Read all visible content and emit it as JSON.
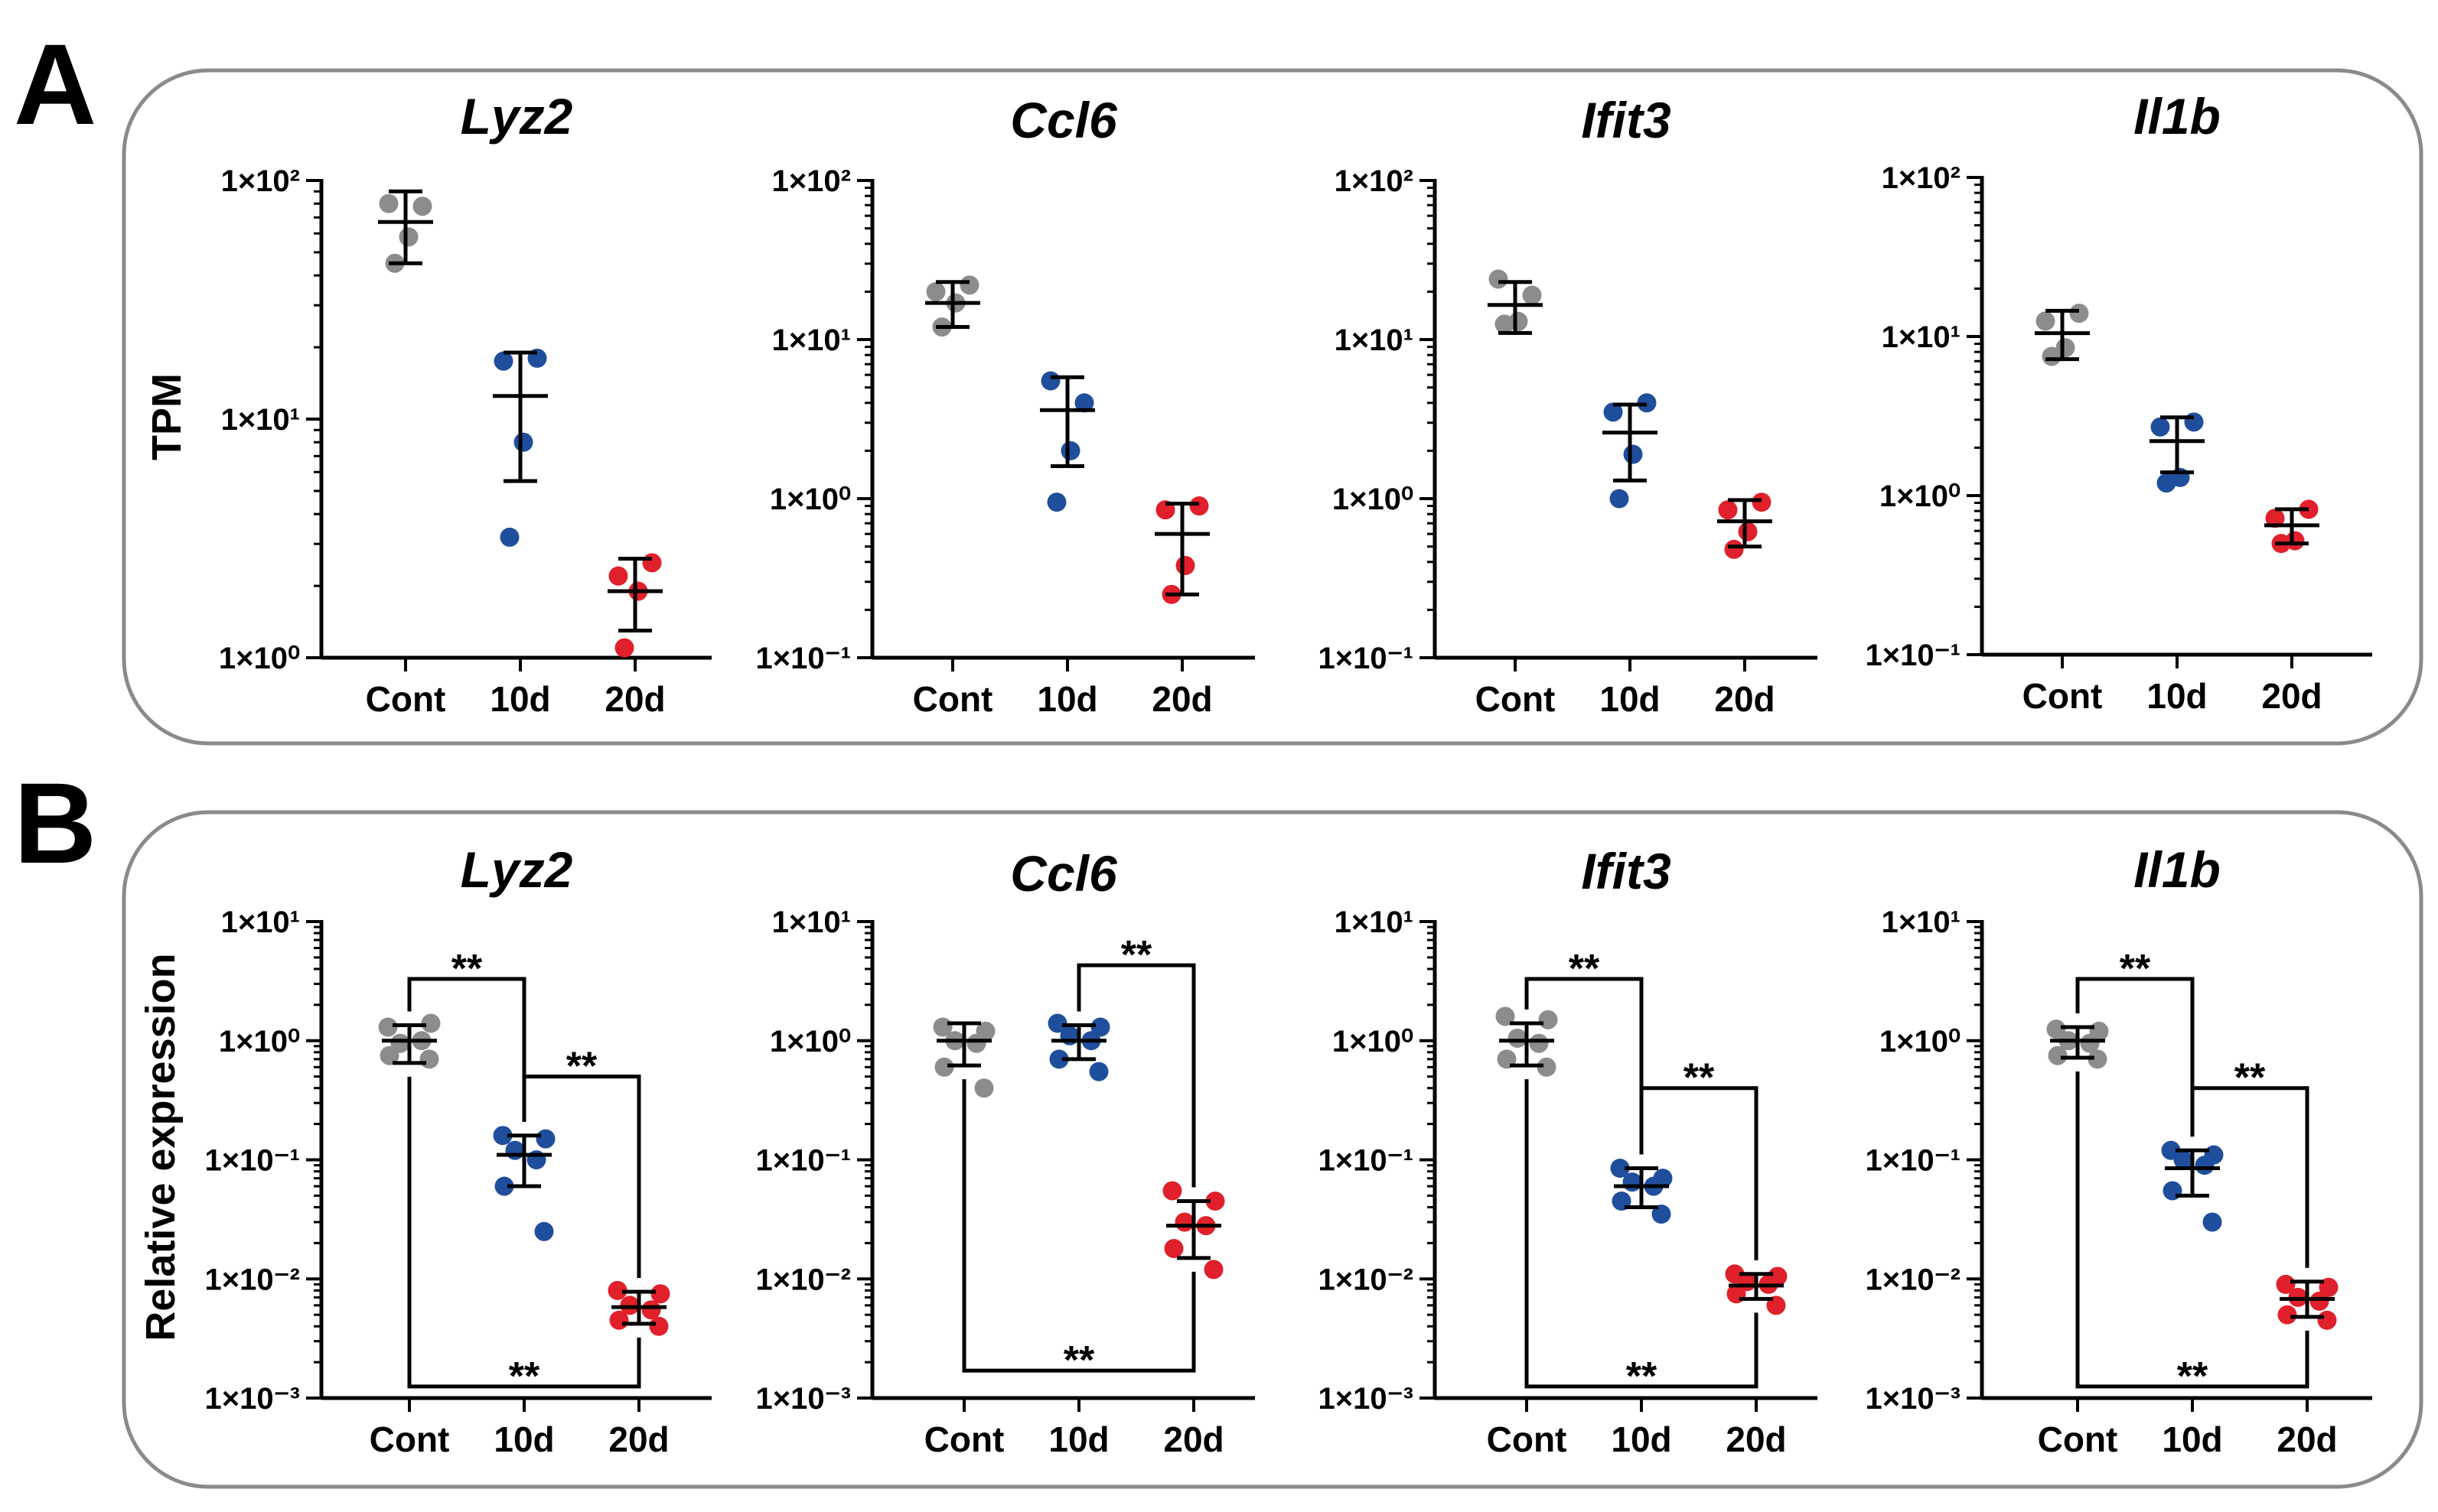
{
  "figure": {
    "panels": [
      {
        "letter": "A",
        "ylabel": "TPM",
        "categories": [
          "Cont",
          "10d",
          "20d"
        ]
      },
      {
        "letter": "B",
        "ylabel": "Relative expression",
        "categories": [
          "Cont",
          "10d",
          "20d"
        ]
      }
    ]
  },
  "colors": {
    "Cont": "#8c8c8c",
    "10d": "#1f4e9c",
    "20d": "#e0202a",
    "frame": "#8a8a8a",
    "ink": "#000000"
  },
  "chart_data": [
    {
      "panel": "A",
      "type": "scatter",
      "title": "Lyz2",
      "xlabel": "",
      "ylabel": "TPM",
      "yscale": "log",
      "ylim": [
        1,
        100
      ],
      "yticks": [
        {
          "value": 1,
          "label": "1×10⁰"
        },
        {
          "value": 10,
          "label": "1×10¹"
        },
        {
          "value": 100,
          "label": "1×10²"
        }
      ],
      "categories": [
        "Cont",
        "10d",
        "20d"
      ],
      "series": [
        {
          "name": "Cont",
          "points": [
            80,
            78,
            58,
            45
          ],
          "mean": 67,
          "err": [
            45,
            90
          ]
        },
        {
          "name": "10d",
          "points": [
            17.5,
            18,
            8,
            3.2
          ],
          "mean": 12.5,
          "err": [
            5.5,
            19
          ]
        },
        {
          "name": "20d",
          "points": [
            2.2,
            2.5,
            1.9,
            1.1
          ],
          "mean": 1.9,
          "err": [
            1.3,
            2.6
          ]
        }
      ],
      "brackets": []
    },
    {
      "panel": "A",
      "type": "scatter",
      "title": "Ccl6",
      "xlabel": "",
      "ylabel": "",
      "yscale": "log",
      "ylim": [
        0.1,
        100
      ],
      "yticks": [
        {
          "value": 0.1,
          "label": "1×10⁻¹"
        },
        {
          "value": 1,
          "label": "1×10⁰"
        },
        {
          "value": 10,
          "label": "1×10¹"
        },
        {
          "value": 100,
          "label": "1×10²"
        }
      ],
      "categories": [
        "Cont",
        "10d",
        "20d"
      ],
      "series": [
        {
          "name": "Cont",
          "points": [
            20,
            22,
            17,
            12
          ],
          "mean": 17,
          "err": [
            12,
            23
          ]
        },
        {
          "name": "10d",
          "points": [
            5.5,
            4.0,
            2.0,
            0.95
          ],
          "mean": 3.6,
          "err": [
            1.6,
            5.8
          ]
        },
        {
          "name": "20d",
          "points": [
            0.85,
            0.9,
            0.38,
            0.25
          ],
          "mean": 0.6,
          "err": [
            0.25,
            0.93
          ]
        }
      ],
      "brackets": []
    },
    {
      "panel": "A",
      "type": "scatter",
      "title": "Ifit3",
      "xlabel": "",
      "ylabel": "",
      "yscale": "log",
      "ylim": [
        0.1,
        100
      ],
      "yticks": [
        {
          "value": 0.1,
          "label": "1×10⁻¹"
        },
        {
          "value": 1,
          "label": "1×10⁰"
        },
        {
          "value": 10,
          "label": "1×10¹"
        },
        {
          "value": 100,
          "label": "1×10²"
        }
      ],
      "categories": [
        "Cont",
        "10d",
        "20d"
      ],
      "series": [
        {
          "name": "Cont",
          "points": [
            24,
            19,
            13,
            12.5
          ],
          "mean": 16.5,
          "err": [
            11,
            23
          ]
        },
        {
          "name": "10d",
          "points": [
            3.5,
            4.0,
            1.9,
            1.0
          ],
          "mean": 2.6,
          "err": [
            1.3,
            3.9
          ]
        },
        {
          "name": "20d",
          "points": [
            0.85,
            0.95,
            0.62,
            0.48
          ],
          "mean": 0.72,
          "err": [
            0.5,
            0.98
          ]
        }
      ],
      "brackets": []
    },
    {
      "panel": "A",
      "type": "scatter",
      "title": "Il1b",
      "xlabel": "",
      "ylabel": "",
      "yscale": "log",
      "ylim": [
        0.1,
        100
      ],
      "yticks": [
        {
          "value": 0.1,
          "label": "1×10⁻¹"
        },
        {
          "value": 1,
          "label": "1×10⁰"
        },
        {
          "value": 10,
          "label": "1×10¹"
        },
        {
          "value": 100,
          "label": "1×10²"
        }
      ],
      "categories": [
        "Cont",
        "10d",
        "20d"
      ],
      "series": [
        {
          "name": "Cont",
          "points": [
            12.5,
            14,
            8.5,
            7.5
          ],
          "mean": 10.5,
          "err": [
            7.2,
            14.5
          ]
        },
        {
          "name": "10d",
          "points": [
            2.7,
            2.9,
            1.3,
            1.2
          ],
          "mean": 2.2,
          "err": [
            1.4,
            3.1
          ]
        },
        {
          "name": "20d",
          "points": [
            0.72,
            0.82,
            0.52,
            0.5
          ],
          "mean": 0.65,
          "err": [
            0.5,
            0.82
          ]
        }
      ],
      "brackets": []
    },
    {
      "panel": "B",
      "type": "scatter",
      "title": "Lyz2",
      "xlabel": "",
      "ylabel": "Relative expression",
      "yscale": "log",
      "ylim": [
        0.001,
        10
      ],
      "yticks": [
        {
          "value": 0.001,
          "label": "1×10⁻³"
        },
        {
          "value": 0.01,
          "label": "1×10⁻²"
        },
        {
          "value": 0.1,
          "label": "1×10⁻¹"
        },
        {
          "value": 1,
          "label": "1×10⁰"
        },
        {
          "value": 10,
          "label": "1×10¹"
        }
      ],
      "categories": [
        "Cont",
        "10d",
        "20d"
      ],
      "series": [
        {
          "name": "Cont",
          "points": [
            1.3,
            1.4,
            0.95,
            1.0,
            0.75,
            0.7
          ],
          "mean": 1.0,
          "err": [
            0.65,
            1.35
          ]
        },
        {
          "name": "10d",
          "points": [
            0.16,
            0.15,
            0.12,
            0.1,
            0.06,
            0.025
          ],
          "mean": 0.11,
          "err": [
            0.06,
            0.16
          ]
        },
        {
          "name": "20d",
          "points": [
            0.008,
            0.0075,
            0.006,
            0.0055,
            0.0045,
            0.004
          ],
          "mean": 0.0058,
          "err": [
            0.0042,
            0.0078
          ]
        }
      ],
      "brackets": [
        {
          "from": "Cont",
          "to": "10d",
          "y": 3.3,
          "position": "top",
          "label": "**"
        },
        {
          "from": "10d",
          "to": "20d",
          "y": 0.5,
          "position": "top",
          "label": "**"
        },
        {
          "from": "Cont",
          "to": "20d",
          "y": 0.00125,
          "position": "bottom",
          "label": "**"
        }
      ]
    },
    {
      "panel": "B",
      "type": "scatter",
      "title": "Ccl6",
      "xlabel": "",
      "ylabel": "",
      "yscale": "log",
      "ylim": [
        0.001,
        10
      ],
      "yticks": [
        {
          "value": 0.001,
          "label": "1×10⁻³"
        },
        {
          "value": 0.01,
          "label": "1×10⁻²"
        },
        {
          "value": 0.1,
          "label": "1×10⁻¹"
        },
        {
          "value": 1,
          "label": "1×10⁰"
        },
        {
          "value": 10,
          "label": "1×10¹"
        }
      ],
      "categories": [
        "Cont",
        "10d",
        "20d"
      ],
      "series": [
        {
          "name": "Cont",
          "points": [
            1.3,
            1.2,
            1.0,
            0.95,
            0.6,
            0.4
          ],
          "mean": 1.0,
          "err": [
            0.62,
            1.4
          ]
        },
        {
          "name": "10d",
          "points": [
            1.4,
            1.3,
            1.1,
            1.0,
            0.7,
            0.55
          ],
          "mean": 1.0,
          "err": [
            0.7,
            1.35
          ]
        },
        {
          "name": "20d",
          "points": [
            0.055,
            0.045,
            0.03,
            0.028,
            0.018,
            0.012
          ],
          "mean": 0.028,
          "err": [
            0.015,
            0.045
          ]
        }
      ],
      "brackets": [
        {
          "from": "10d",
          "to": "20d",
          "y": 4.3,
          "position": "top",
          "label": "**"
        },
        {
          "from": "Cont",
          "to": "20d",
          "y": 0.0017,
          "position": "bottom",
          "label": "**"
        }
      ]
    },
    {
      "panel": "B",
      "type": "scatter",
      "title": "Ifit3",
      "xlabel": "",
      "ylabel": "",
      "yscale": "log",
      "ylim": [
        0.001,
        10
      ],
      "yticks": [
        {
          "value": 0.001,
          "label": "1×10⁻³"
        },
        {
          "value": 0.01,
          "label": "1×10⁻²"
        },
        {
          "value": 0.1,
          "label": "1×10⁻¹"
        },
        {
          "value": 1,
          "label": "1×10⁰"
        },
        {
          "value": 10,
          "label": "1×10¹"
        }
      ],
      "categories": [
        "Cont",
        "10d",
        "20d"
      ],
      "series": [
        {
          "name": "Cont",
          "points": [
            1.6,
            1.5,
            1.05,
            0.95,
            0.7,
            0.6
          ],
          "mean": 1.0,
          "err": [
            0.62,
            1.4
          ]
        },
        {
          "name": "10d",
          "points": [
            0.085,
            0.07,
            0.065,
            0.06,
            0.045,
            0.035
          ],
          "mean": 0.06,
          "err": [
            0.04,
            0.085
          ]
        },
        {
          "name": "20d",
          "points": [
            0.011,
            0.0105,
            0.0095,
            0.009,
            0.0075,
            0.006
          ],
          "mean": 0.0088,
          "err": [
            0.0068,
            0.011
          ]
        }
      ],
      "brackets": [
        {
          "from": "Cont",
          "to": "10d",
          "y": 3.3,
          "position": "top",
          "label": "**"
        },
        {
          "from": "10d",
          "to": "20d",
          "y": 0.4,
          "position": "top",
          "label": "**"
        },
        {
          "from": "Cont",
          "to": "20d",
          "y": 0.00125,
          "position": "bottom",
          "label": "**"
        }
      ]
    },
    {
      "panel": "B",
      "type": "scatter",
      "title": "Il1b",
      "xlabel": "",
      "ylabel": "",
      "yscale": "log",
      "ylim": [
        0.001,
        10
      ],
      "yticks": [
        {
          "value": 0.001,
          "label": "1×10⁻³"
        },
        {
          "value": 0.01,
          "label": "1×10⁻²"
        },
        {
          "value": 0.1,
          "label": "1×10⁻¹"
        },
        {
          "value": 1,
          "label": "1×10⁰"
        },
        {
          "value": 10,
          "label": "1×10¹"
        }
      ],
      "categories": [
        "Cont",
        "10d",
        "20d"
      ],
      "series": [
        {
          "name": "Cont",
          "points": [
            1.25,
            1.2,
            1.0,
            0.95,
            0.75,
            0.7
          ],
          "mean": 1.0,
          "err": [
            0.72,
            1.3
          ]
        },
        {
          "name": "10d",
          "points": [
            0.12,
            0.11,
            0.1,
            0.09,
            0.055,
            0.03
          ],
          "mean": 0.085,
          "err": [
            0.05,
            0.12
          ]
        },
        {
          "name": "20d",
          "points": [
            0.009,
            0.0085,
            0.007,
            0.0065,
            0.005,
            0.0045
          ],
          "mean": 0.0068,
          "err": [
            0.0048,
            0.0095
          ]
        }
      ],
      "brackets": [
        {
          "from": "Cont",
          "to": "10d",
          "y": 3.3,
          "position": "top",
          "label": "**"
        },
        {
          "from": "10d",
          "to": "20d",
          "y": 0.4,
          "position": "top",
          "label": "**"
        },
        {
          "from": "Cont",
          "to": "20d",
          "y": 0.00125,
          "position": "bottom",
          "label": "**"
        }
      ]
    }
  ]
}
